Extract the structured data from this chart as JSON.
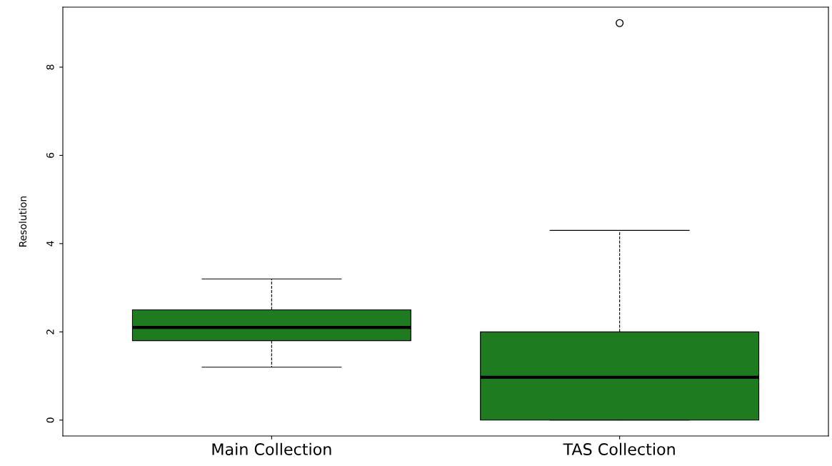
{
  "chart_data": {
    "type": "box",
    "ylabel": "Resolution",
    "categories": [
      "Main Collection",
      "TAS Collection"
    ],
    "boxes": [
      {
        "low": 1.2,
        "q1": 1.8,
        "median": 2.1,
        "q3": 2.5,
        "high": 3.2
      },
      {
        "low": 0,
        "q1": 0,
        "median": 0.97,
        "q3": 2.0,
        "high": 4.3,
        "outliers": [
          9
        ]
      }
    ],
    "color": "#1f7b1f",
    "ylim": [
      -0.36,
      9.36
    ],
    "yticks": [
      0,
      2,
      4,
      6,
      8
    ],
    "grid": false
  }
}
